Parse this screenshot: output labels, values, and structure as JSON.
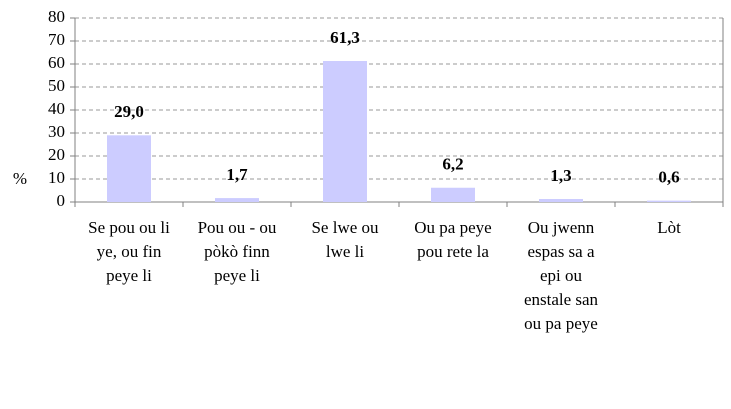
{
  "chart_data": {
    "type": "bar",
    "y_label": "%",
    "categories": [
      "Se pou ou li ye, ou fin peye li",
      "Pou ou - ou pòkò finn peye li",
      "Se lwe ou lwe li",
      "Ou pa peye pou rete la",
      "Ou jwenn espas sa a epi ou enstale san ou pa peye",
      "Lòt"
    ],
    "values": [
      29.0,
      1.7,
      61.3,
      6.2,
      1.3,
      0.6
    ],
    "value_labels": [
      "29,0",
      "1,7",
      "61,3",
      "6,2",
      "1,3",
      "0,6"
    ],
    "color": "#ccccff",
    "ylim": [
      0,
      80
    ],
    "yticks": [
      0,
      10,
      20,
      30,
      40,
      50,
      60,
      70,
      80
    ],
    "grid": true
  }
}
